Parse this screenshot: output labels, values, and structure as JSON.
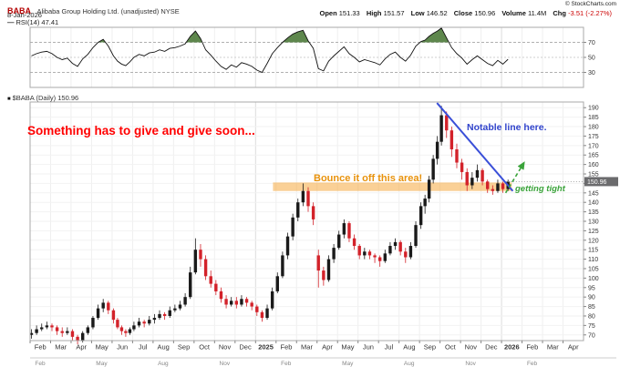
{
  "header": {
    "symbol": "BABA",
    "company": "Alibaba Group Holding Ltd. (unadjusted) NYSE",
    "copyright": "© StockCharts.com",
    "date": "8-Jan-2026",
    "quote": {
      "open_label": "Open",
      "open": "151.33",
      "high_label": "High",
      "high": "151.57",
      "low_label": "Low",
      "low": "146.52",
      "close_label": "Close",
      "close": "150.96",
      "volume_label": "Volume",
      "volume": "11.4M",
      "chg_label": "Chg",
      "chg": "-3.51 (-2.27%)"
    },
    "rsi_swatch": "—",
    "rsi_legend": "RSI(14) 47.41",
    "main_swatch": "■",
    "main_legend": "$BABA (Daily) 150.96"
  },
  "colors": {
    "up_candle": "#1a1a1a",
    "down_candle": "#d3222a",
    "rsi_line": "#111111",
    "rsi_overbought_fill": "#4d7a3a",
    "grid_light": "#efefef",
    "grid_year": "#dcdcdc",
    "panel_border": "#a8a8a8",
    "axis_text": "#333333",
    "price_tag_bg": "#6b6b6d",
    "price_tag_text": "#ffffff",
    "annotation_red": "#ff0000",
    "annotation_orange": "#e8920c",
    "annotation_orange_fill": "#f5a93f",
    "annotation_blue": "#3a4fd8",
    "annotation_green": "#3aa33a"
  },
  "annotations": {
    "red_note": "Something has to give and give soon...",
    "orange_note": "Bounce it off this area!",
    "blue_note": "Notable line here.",
    "green_note": "getting tight",
    "support_zone": {
      "price_top": 150.5,
      "price_bottom": 146,
      "month_start": 11.85,
      "month_end": 23.5
    },
    "trendline": {
      "from": {
        "month": 19.85,
        "price": 192.5
      },
      "to": {
        "month": 23.55,
        "price": 146
      }
    },
    "arrow": {
      "from": {
        "month": 23.2,
        "price": 145
      },
      "to": {
        "month": 24.1,
        "price": 161
      }
    },
    "price_tag": "150.96"
  },
  "rsi_panel": {
    "ticks": [
      70,
      50,
      30
    ],
    "overbought": 70,
    "oversold": 30,
    "mid": 50
  },
  "x_axis": {
    "labels": [
      "Feb",
      "Mar",
      "Apr",
      "May",
      "Jun",
      "Jul",
      "Aug",
      "Sep",
      "Oct",
      "Nov",
      "Dec",
      "2025",
      "Feb",
      "Mar",
      "Apr",
      "May",
      "Jun",
      "Jul",
      "Aug",
      "Sep",
      "Oct",
      "Nov",
      "Dec",
      "2026",
      "Feb",
      "Mar",
      "Apr"
    ],
    "mini_labels": [
      "Feb",
      "May",
      "Aug",
      "Nov",
      "Feb",
      "May",
      "Aug",
      "Nov",
      "Feb"
    ]
  },
  "chart_data": {
    "type": "candlestick",
    "title": "BABA Alibaba Group Holding Ltd. (unadjusted) NYSE, Daily, with RSI(14)",
    "symbol": "$BABA",
    "last_close": 150.96,
    "rsi_period": 14,
    "rsi_last": 47.41,
    "x_unit": "months since 2024-02-01 (weekly-resolution approximation of daily candles)",
    "x_range": [
      0,
      27
    ],
    "price_axis": {
      "min": 70,
      "max": 190,
      "tick_step": 5
    },
    "rsi_axis": {
      "min": 10,
      "max": 90,
      "ticks": [
        70,
        50,
        30
      ]
    },
    "legend_position": "top-left",
    "grid": true,
    "candles": [
      [
        0.0,
        70,
        73,
        68,
        71
      ],
      [
        0.25,
        71,
        75,
        70,
        73
      ],
      [
        0.5,
        73,
        76,
        72,
        74
      ],
      [
        0.75,
        74,
        77,
        73,
        75
      ],
      [
        1.0,
        75,
        76,
        72,
        74
      ],
      [
        1.25,
        74,
        75,
        70,
        72
      ],
      [
        1.5,
        72,
        74,
        69,
        71
      ],
      [
        1.75,
        71,
        74,
        70,
        72
      ],
      [
        2.0,
        72,
        73,
        67,
        69
      ],
      [
        2.25,
        69,
        70,
        65,
        67
      ],
      [
        2.5,
        67,
        72,
        66,
        71
      ],
      [
        2.75,
        71,
        75,
        70,
        74
      ],
      [
        3.0,
        74,
        80,
        73,
        79
      ],
      [
        3.25,
        79,
        86,
        78,
        84
      ],
      [
        3.5,
        84,
        89,
        82,
        87
      ],
      [
        3.75,
        87,
        88,
        81,
        83
      ],
      [
        4.0,
        83,
        84,
        76,
        78
      ],
      [
        4.2,
        78,
        79,
        73,
        74
      ],
      [
        4.4,
        74,
        75,
        70,
        72
      ],
      [
        4.6,
        72,
        73,
        69,
        71
      ],
      [
        4.8,
        71,
        74,
        70,
        73
      ],
      [
        5.0,
        73,
        77,
        72,
        75
      ],
      [
        5.25,
        75,
        79,
        74,
        77
      ],
      [
        5.5,
        77,
        78,
        74,
        76
      ],
      [
        5.75,
        76,
        80,
        75,
        78
      ],
      [
        6.0,
        78,
        81,
        76,
        79
      ],
      [
        6.25,
        79,
        83,
        78,
        81
      ],
      [
        6.5,
        81,
        82,
        78,
        80
      ],
      [
        6.75,
        80,
        85,
        79,
        83
      ],
      [
        7.0,
        83,
        86,
        82,
        84
      ],
      [
        7.25,
        84,
        88,
        83,
        86
      ],
      [
        7.5,
        86,
        92,
        85,
        90
      ],
      [
        7.75,
        90,
        106,
        89,
        103
      ],
      [
        8.0,
        103,
        121,
        102,
        115
      ],
      [
        8.25,
        115,
        118,
        106,
        110
      ],
      [
        8.5,
        110,
        112,
        99,
        101
      ],
      [
        8.75,
        101,
        104,
        95,
        97
      ],
      [
        9.0,
        97,
        99,
        91,
        93
      ],
      [
        9.25,
        93,
        95,
        87,
        89
      ],
      [
        9.5,
        89,
        91,
        84,
        86
      ],
      [
        9.75,
        86,
        90,
        85,
        88
      ],
      [
        10.0,
        88,
        90,
        84,
        86
      ],
      [
        10.25,
        86,
        91,
        85,
        89
      ],
      [
        10.5,
        89,
        90,
        85,
        87
      ],
      [
        10.75,
        87,
        88,
        83,
        85
      ],
      [
        11.0,
        85,
        86,
        80,
        82
      ],
      [
        11.25,
        82,
        83,
        77,
        79
      ],
      [
        11.5,
        79,
        86,
        78,
        84
      ],
      [
        11.75,
        84,
        95,
        83,
        93
      ],
      [
        12.0,
        93,
        103,
        92,
        101
      ],
      [
        12.25,
        101,
        114,
        100,
        112
      ],
      [
        12.5,
        112,
        124,
        110,
        122
      ],
      [
        12.75,
        122,
        134,
        120,
        132
      ],
      [
        13.0,
        132,
        142,
        130,
        140
      ],
      [
        13.25,
        140,
        150,
        138,
        146
      ],
      [
        13.5,
        146,
        148,
        135,
        138
      ],
      [
        13.75,
        138,
        140,
        128,
        131
      ],
      [
        14.0,
        112,
        115,
        95,
        104
      ],
      [
        14.25,
        104,
        106,
        96,
        99
      ],
      [
        14.5,
        99,
        112,
        98,
        110
      ],
      [
        14.75,
        110,
        118,
        108,
        116
      ],
      [
        15.0,
        116,
        125,
        115,
        123
      ],
      [
        15.25,
        123,
        131,
        121,
        129
      ],
      [
        15.5,
        129,
        130,
        119,
        121
      ],
      [
        15.75,
        121,
        123,
        115,
        117
      ],
      [
        16.0,
        117,
        118,
        110,
        112
      ],
      [
        16.25,
        112,
        116,
        110,
        114
      ],
      [
        16.5,
        114,
        115,
        110,
        112
      ],
      [
        16.75,
        112,
        113,
        108,
        111
      ],
      [
        17.0,
        111,
        112,
        106,
        109
      ],
      [
        17.25,
        109,
        115,
        108,
        113
      ],
      [
        17.5,
        113,
        119,
        112,
        117
      ],
      [
        17.75,
        117,
        121,
        115,
        119
      ],
      [
        18.0,
        119,
        120,
        112,
        114
      ],
      [
        18.25,
        114,
        116,
        108,
        111
      ],
      [
        18.5,
        111,
        119,
        110,
        117
      ],
      [
        18.75,
        117,
        130,
        116,
        128
      ],
      [
        19.0,
        128,
        140,
        126,
        138
      ],
      [
        19.2,
        138,
        144,
        134,
        142
      ],
      [
        19.4,
        142,
        154,
        140,
        152
      ],
      [
        19.6,
        152,
        165,
        150,
        163
      ],
      [
        19.8,
        163,
        175,
        160,
        172
      ],
      [
        20.0,
        172,
        191,
        170,
        186
      ],
      [
        20.25,
        186,
        188,
        174,
        178
      ],
      [
        20.5,
        178,
        180,
        164,
        168
      ],
      [
        20.75,
        168,
        171,
        158,
        161
      ],
      [
        21.0,
        161,
        163,
        152,
        156
      ],
      [
        21.25,
        156,
        158,
        146,
        149
      ],
      [
        21.5,
        149,
        156,
        147,
        153
      ],
      [
        21.75,
        153,
        160,
        151,
        157
      ],
      [
        22.0,
        157,
        158,
        149,
        151
      ],
      [
        22.25,
        151,
        152,
        145,
        147
      ],
      [
        22.5,
        147,
        149,
        144,
        146
      ],
      [
        22.75,
        146,
        152,
        145,
        150
      ],
      [
        23.0,
        150,
        151,
        145,
        147
      ],
      [
        23.25,
        147,
        152,
        146,
        151
      ]
    ],
    "rsi_values": [
      52,
      55,
      57,
      58,
      55,
      50,
      47,
      49,
      42,
      38,
      48,
      54,
      63,
      70,
      74,
      65,
      52,
      45,
      41,
      39,
      44,
      50,
      54,
      52,
      56,
      57,
      60,
      58,
      62,
      63,
      65,
      68,
      78,
      85,
      75,
      60,
      53,
      45,
      38,
      34,
      40,
      37,
      43,
      41,
      38,
      33,
      30,
      42,
      55,
      63,
      70,
      76,
      81,
      84,
      86,
      72,
      62,
      35,
      32,
      45,
      52,
      58,
      64,
      55,
      50,
      44,
      47,
      45,
      43,
      40,
      48,
      54,
      57,
      50,
      45,
      53,
      65,
      71,
      73,
      78,
      82,
      85,
      89,
      76,
      63,
      55,
      49,
      41,
      47,
      52,
      47,
      42,
      39,
      46,
      41,
      47.41
    ]
  }
}
